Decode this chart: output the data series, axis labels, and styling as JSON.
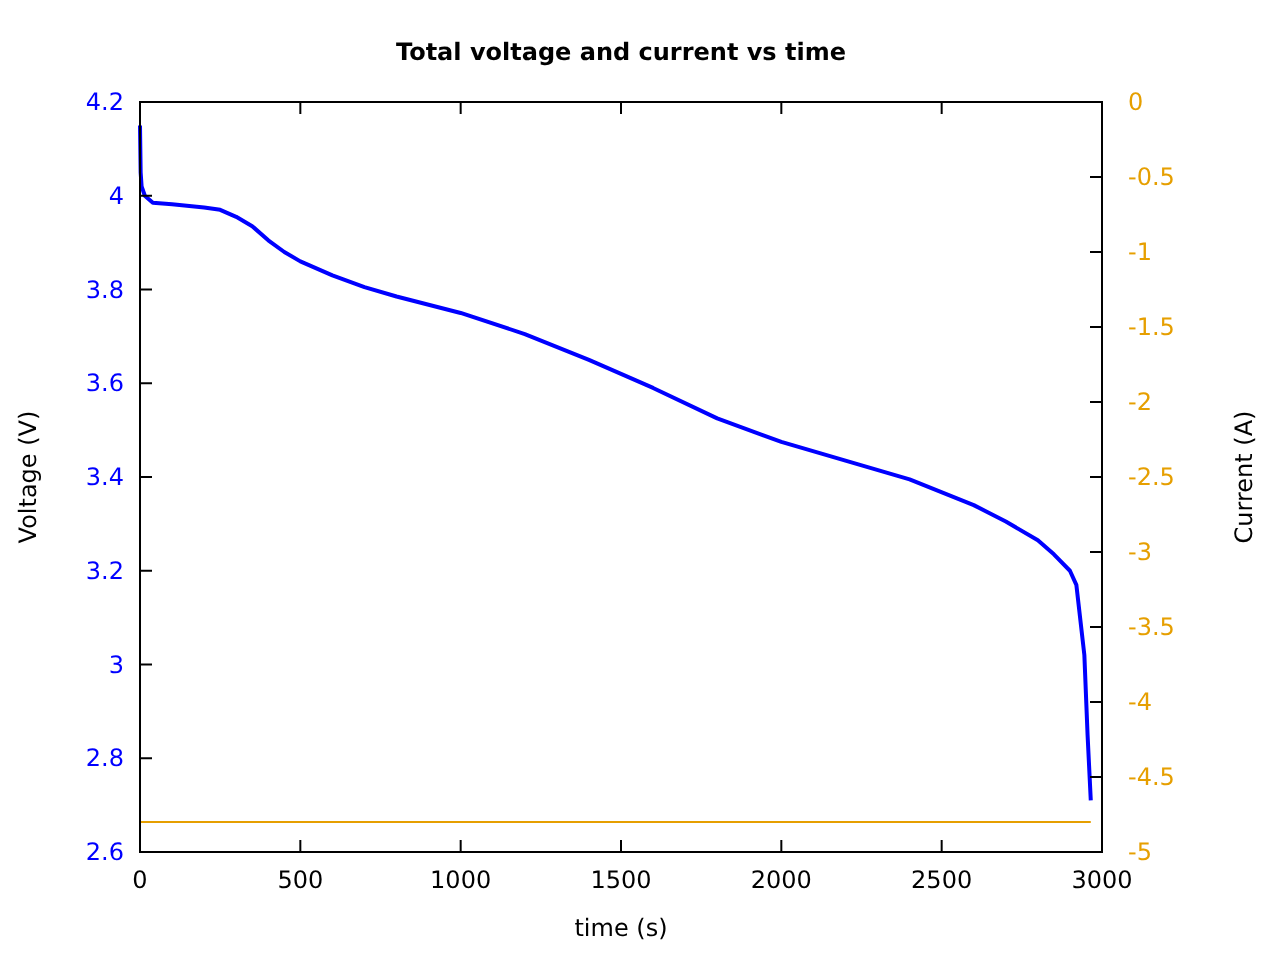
{
  "chart_data": {
    "type": "line",
    "title": "Total voltage and current vs time",
    "xlabel": "time (s)",
    "ylabel": "Voltage (V)",
    "y2label": "Current (A)",
    "xlim": [
      0,
      3000
    ],
    "xticks": [
      0,
      500,
      1000,
      1500,
      2000,
      2500,
      3000
    ],
    "ylim": [
      2.6,
      4.2
    ],
    "yticks": [
      2.6,
      2.8,
      3,
      3.2,
      3.4,
      3.6,
      3.8,
      4,
      4.2
    ],
    "y2lim": [
      -5,
      0
    ],
    "y2ticks": [
      -5,
      -4.5,
      -4,
      -3.5,
      -3,
      -2.5,
      -2,
      -1.5,
      -1,
      -0.5,
      0
    ],
    "grid": false,
    "series": [
      {
        "color": "#0000ff",
        "x": [
          0,
          2,
          5,
          15,
          40,
          100,
          200,
          250,
          300,
          350,
          400,
          450,
          500,
          600,
          700,
          800,
          1000,
          1200,
          1400,
          1600,
          1800,
          2000,
          2200,
          2400,
          2600,
          2700,
          2800,
          2850,
          2900,
          2920,
          2945,
          2955,
          2965
        ],
        "values": [
          4.15,
          4.05,
          4.02,
          4.0,
          3.985,
          3.982,
          3.975,
          3.97,
          3.955,
          3.935,
          3.905,
          3.88,
          3.86,
          3.83,
          3.805,
          3.785,
          3.75,
          3.705,
          3.65,
          3.59,
          3.525,
          3.475,
          3.435,
          3.395,
          3.34,
          3.305,
          3.265,
          3.235,
          3.2,
          3.17,
          3.02,
          2.85,
          2.71
        ]
      },
      {
        "color": "#e69f00",
        "axis": "y2",
        "x": [
          0,
          2965
        ],
        "values": [
          -4.8,
          -4.8
        ]
      }
    ]
  }
}
